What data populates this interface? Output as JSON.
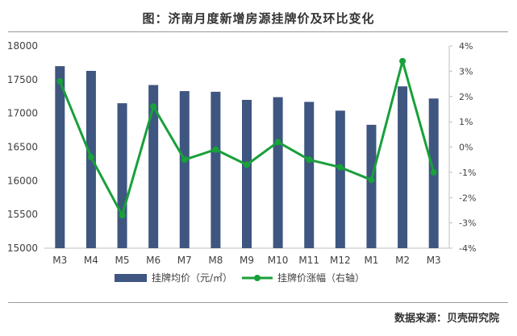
{
  "chart_title": "图：济南月度新增房源挂牌价及环比变化",
  "source": "数据来源：贝壳研究院",
  "colors": {
    "bar": "#3e5680",
    "line": "#18a03a",
    "axis": "#bfbfbf",
    "text": "#404040"
  },
  "chart_data": {
    "type": "bar",
    "categories": [
      "M3",
      "M4",
      "M5",
      "M6",
      "M7",
      "M8",
      "M9",
      "M10",
      "M11",
      "M12",
      "M1",
      "M2",
      "M3"
    ],
    "series": [
      {
        "name": "挂牌均价（元/㎡）",
        "type": "bar",
        "axis": "left",
        "values": [
          17700,
          17630,
          17150,
          17420,
          17330,
          17320,
          17200,
          17240,
          17170,
          17040,
          16830,
          17400,
          17220
        ]
      },
      {
        "name": "挂牌价涨幅（右轴）",
        "type": "line",
        "axis": "right",
        "unit": "%",
        "values": [
          2.6,
          -0.4,
          -2.7,
          1.6,
          -0.5,
          -0.1,
          -0.7,
          0.2,
          -0.5,
          -0.8,
          -1.3,
          3.4,
          -1.0
        ]
      }
    ],
    "ylim_left": [
      15000,
      18000
    ],
    "yticks_left": [
      "15000",
      "15500",
      "16000",
      "16500",
      "17000",
      "17500",
      "18000"
    ],
    "ylim_right": [
      -4,
      4
    ],
    "yticks_right": [
      "-4%",
      "-3%",
      "-2%",
      "-1%",
      "0%",
      "1%",
      "2%",
      "3%",
      "4%"
    ],
    "legend_position": "bottom",
    "grid": false
  }
}
